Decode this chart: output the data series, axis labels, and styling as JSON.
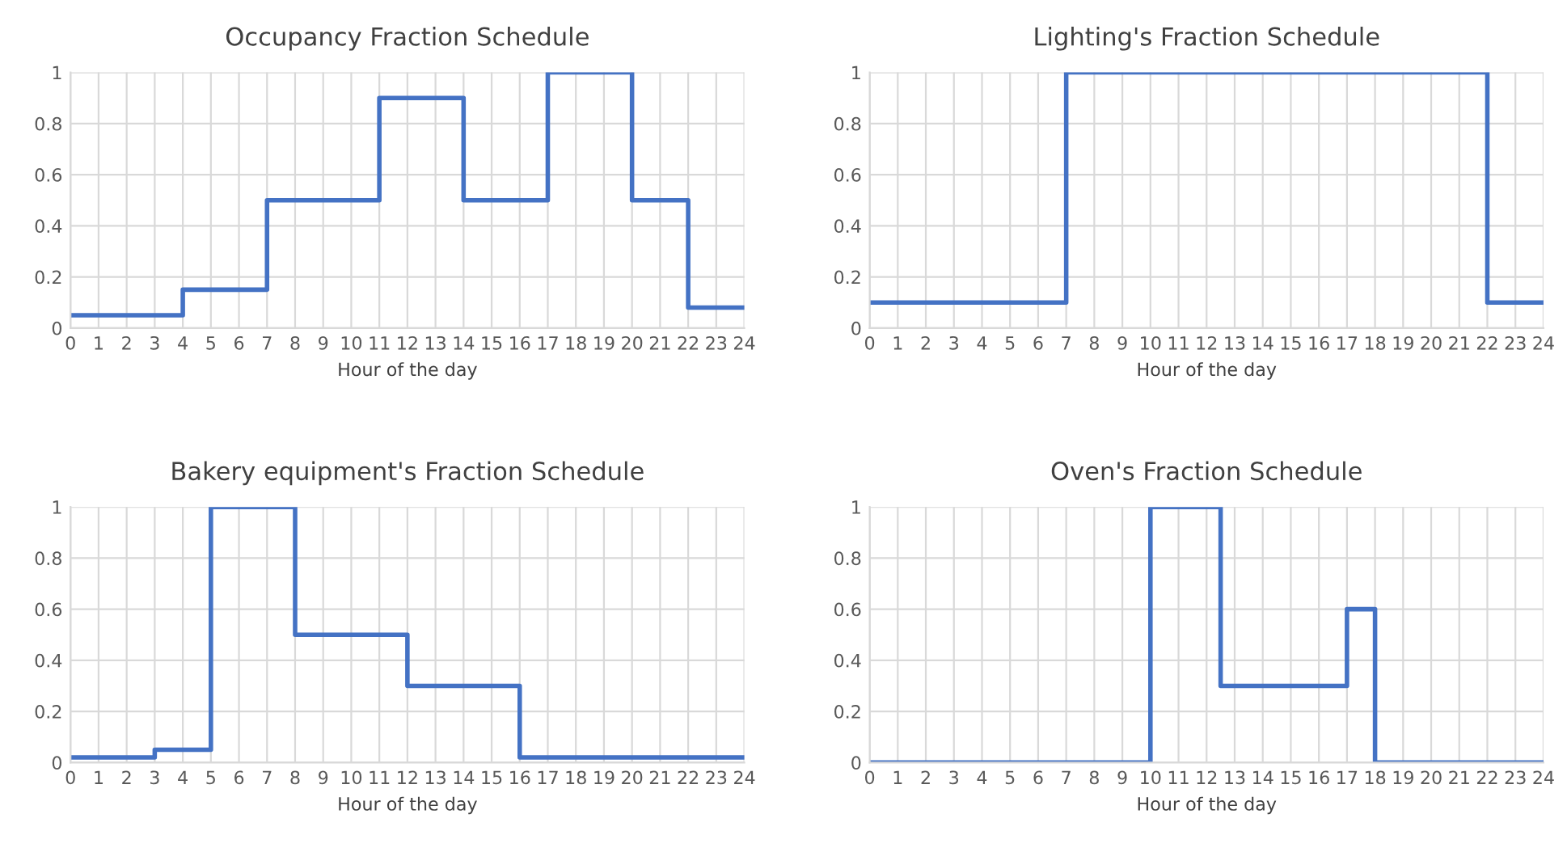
{
  "chart_data": [
    {
      "type": "step",
      "title": "Occupancy Fraction Schedule",
      "xlabel": "Hour of the day",
      "x": [
        0,
        4,
        7,
        11,
        14,
        17,
        20,
        22,
        24
      ],
      "series": [
        {
          "color": "#4472c4",
          "values": [
            0.05,
            0.15,
            0.5,
            0.9,
            0.5,
            1,
            0.5,
            0.08,
            0.08
          ]
        }
      ],
      "xlim": [
        0,
        24
      ],
      "xticks": [
        0,
        1,
        2,
        3,
        4,
        5,
        6,
        7,
        8,
        9,
        10,
        11,
        12,
        13,
        14,
        15,
        16,
        17,
        18,
        19,
        20,
        21,
        22,
        23,
        24
      ],
      "ylim": [
        0,
        1
      ],
      "yticks": [
        0,
        0.2,
        0.4,
        0.6,
        0.8,
        1
      ],
      "grid": true
    },
    {
      "type": "step",
      "title": "Lighting's Fraction Schedule",
      "xlabel": "Hour of the day",
      "x": [
        0,
        7,
        22,
        24
      ],
      "series": [
        {
          "color": "#4472c4",
          "values": [
            0.1,
            1,
            0.1,
            0.1
          ]
        }
      ],
      "xlim": [
        0,
        24
      ],
      "xticks": [
        0,
        1,
        2,
        3,
        4,
        5,
        6,
        7,
        8,
        9,
        10,
        11,
        12,
        13,
        14,
        15,
        16,
        17,
        18,
        19,
        20,
        21,
        22,
        23,
        24
      ],
      "ylim": [
        0,
        1
      ],
      "yticks": [
        0,
        0.2,
        0.4,
        0.6,
        0.8,
        1
      ],
      "grid": true
    },
    {
      "type": "step",
      "title": "Bakery equipment's Fraction Schedule",
      "xlabel": "Hour of the day",
      "x": [
        0,
        3,
        5,
        8,
        12,
        16,
        24
      ],
      "series": [
        {
          "color": "#4472c4",
          "values": [
            0.02,
            0.05,
            1,
            0.5,
            0.3,
            0.02,
            0.02
          ]
        }
      ],
      "xlim": [
        0,
        24
      ],
      "xticks": [
        0,
        1,
        2,
        3,
        4,
        5,
        6,
        7,
        8,
        9,
        10,
        11,
        12,
        13,
        14,
        15,
        16,
        17,
        18,
        19,
        20,
        21,
        22,
        23,
        24
      ],
      "ylim": [
        0,
        1
      ],
      "yticks": [
        0,
        0.2,
        0.4,
        0.6,
        0.8,
        1
      ],
      "grid": true
    },
    {
      "type": "step",
      "title": "Oven's Fraction Schedule",
      "xlabel": "Hour of the day",
      "x": [
        0,
        10,
        12.5,
        17,
        18,
        24
      ],
      "series": [
        {
          "color": "#4472c4",
          "values": [
            0,
            1,
            0.3,
            0.6,
            0,
            0
          ]
        }
      ],
      "xlim": [
        0,
        24
      ],
      "xticks": [
        0,
        1,
        2,
        3,
        4,
        5,
        6,
        7,
        8,
        9,
        10,
        11,
        12,
        13,
        14,
        15,
        16,
        17,
        18,
        19,
        20,
        21,
        22,
        23,
        24
      ],
      "ylim": [
        0,
        1
      ],
      "yticks": [
        0,
        0.2,
        0.4,
        0.6,
        0.8,
        1
      ],
      "grid": true
    }
  ]
}
